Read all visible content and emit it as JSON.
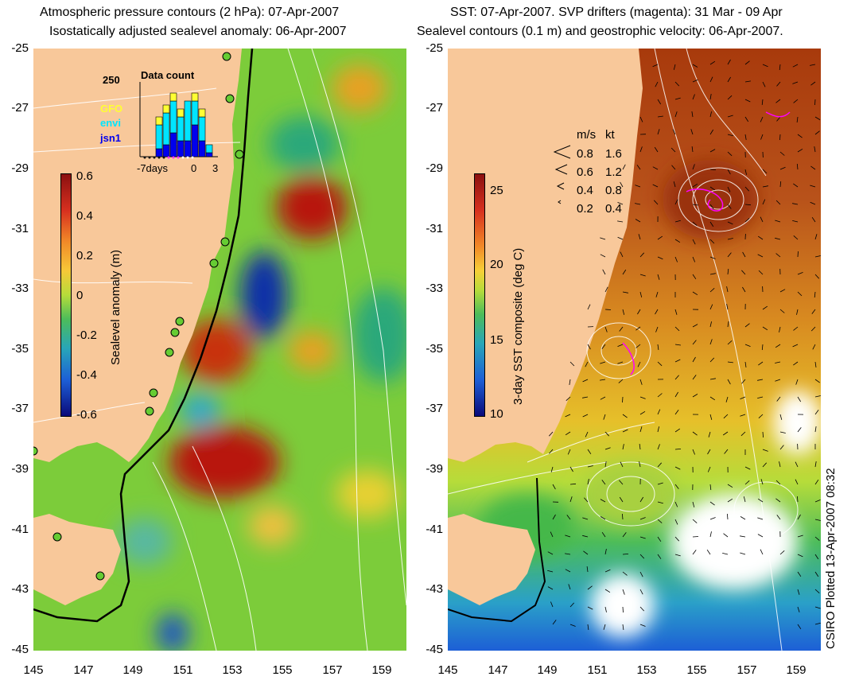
{
  "left_panel": {
    "title_line1": "Atmospheric pressure contours (2 hPa): 07-Apr-2007",
    "title_line2": "Isostatically adjusted sealevel anomaly: 06-Apr-2007",
    "colorbar_label": "Sealevel anomaly (m)",
    "colorbar_ticks": [
      "0.6",
      "0.4",
      "0.2",
      "0",
      "-0.2",
      "-0.4",
      "-0.6"
    ],
    "inset": {
      "title": "Data count",
      "ymax_label": "250",
      "series": [
        {
          "name": "GFO",
          "color": "#ffff33"
        },
        {
          "name": "envi",
          "color": "#00e5ff"
        },
        {
          "name": "jsn1",
          "color": "#0000ee"
        }
      ],
      "xlabels": [
        "-7days",
        "0",
        "3"
      ]
    }
  },
  "right_panel": {
    "title_line1": "SST: 07-Apr-2007. SVP drifters (magenta): 31 Mar - 09 Apr",
    "title_line2": "Sealevel contours (0.1 m) and geostrophic velocity: 06-Apr-2007.",
    "colorbar_label": "3-day SST composite (deg C)",
    "colorbar_ticks": [
      "25",
      "20",
      "15",
      "10"
    ],
    "velocity_legend": {
      "header_ms": "m/s",
      "header_kt": "kt",
      "rows": [
        {
          "ms": "0.8",
          "kt": "1.6"
        },
        {
          "ms": "0.6",
          "kt": "1.2"
        },
        {
          "ms": "0.4",
          "kt": "0.8"
        },
        {
          "ms": "0.2",
          "kt": "0.4"
        }
      ]
    }
  },
  "axes": {
    "lat_ticks": [
      "-25",
      "-27",
      "-29",
      "-31",
      "-33",
      "-35",
      "-37",
      "-39",
      "-41",
      "-43",
      "-45"
    ],
    "lon_ticks": [
      "145",
      "147",
      "149",
      "151",
      "153",
      "155",
      "157",
      "159"
    ]
  },
  "credit": "CSIRO Plotted 13-Apr-2007 08:32",
  "colors": {
    "land": "#f8c89a",
    "coast_line": "#000000",
    "drifter": "#ff00ff"
  }
}
